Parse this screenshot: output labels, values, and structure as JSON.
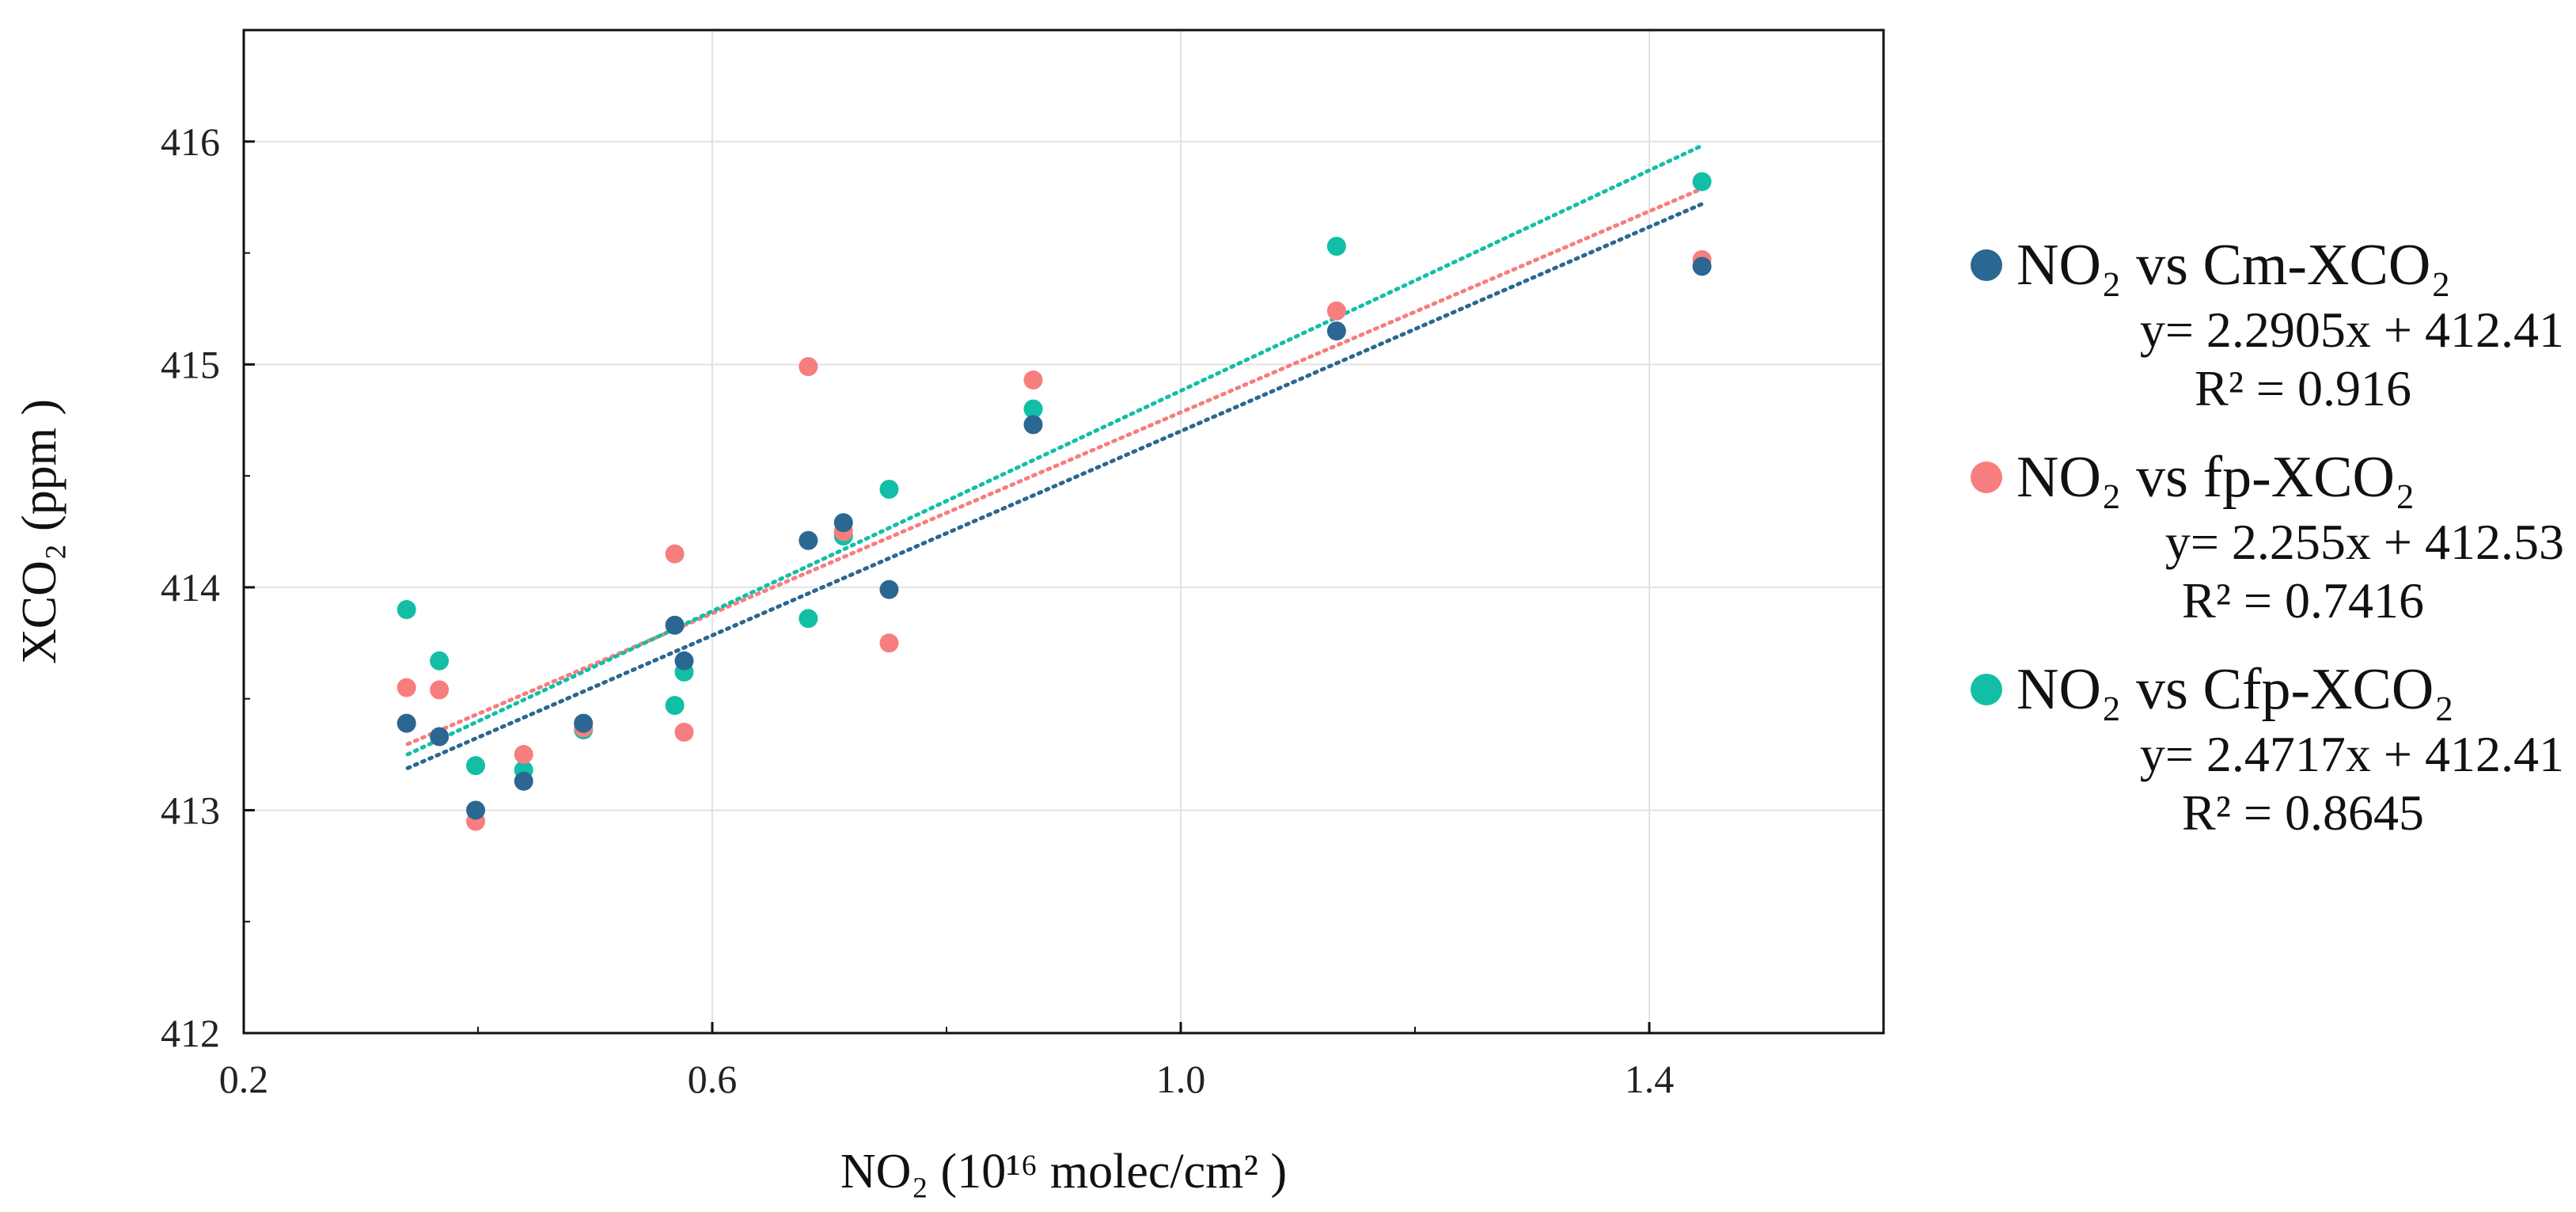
{
  "chart_data": {
    "type": "scatter",
    "xlabel": "NO₂ (10¹⁶ molec/cm² )",
    "ylabel": "XCO₂ (ppm )",
    "xlim": [
      0.2,
      1.6
    ],
    "ylim": [
      412,
      416.5
    ],
    "xticks": [
      0.2,
      0.6,
      1.0,
      1.4
    ],
    "xtick_labels": [
      "0.2",
      "0.6",
      "1.0",
      "1.4"
    ],
    "yticks": [
      412,
      413,
      414,
      415,
      416
    ],
    "ytick_labels": [
      "412",
      "413",
      "414",
      "415",
      "416"
    ],
    "grid": true,
    "legend_position": "right",
    "series": [
      {
        "name": "NO₂ vs Cm-XCO₂",
        "color": "#2b6791",
        "equation": "y= 2.2905x + 412.41",
        "r2": "R² = 0.916",
        "slope": 2.2905,
        "intercept": 412.41,
        "x": [
          0.339,
          0.367,
          0.398,
          0.439,
          0.49,
          0.568,
          0.576,
          0.682,
          0.712,
          0.751,
          0.874,
          1.133,
          1.445
        ],
        "y": [
          413.39,
          413.33,
          413.0,
          413.13,
          413.39,
          413.83,
          413.67,
          414.21,
          414.29,
          413.99,
          414.73,
          415.15,
          415.44
        ]
      },
      {
        "name": "NO₂ vs fp-XCO₂",
        "color": "#f77e7e",
        "equation": "y= 2.255x + 412.53",
        "r2": "R² = 0.7416",
        "slope": 2.255,
        "intercept": 412.53,
        "x": [
          0.339,
          0.367,
          0.398,
          0.439,
          0.49,
          0.568,
          0.576,
          0.682,
          0.712,
          0.751,
          0.874,
          1.133,
          1.445
        ],
        "y": [
          413.55,
          413.54,
          412.95,
          413.25,
          413.37,
          414.15,
          413.35,
          414.99,
          414.25,
          413.75,
          414.93,
          415.24,
          415.47
        ]
      },
      {
        "name": "NO₂ vs Cfp-XCO₂",
        "color": "#12bfa6",
        "equation": "y= 2.4717x + 412.41",
        "r2": "R² = 0.8645",
        "slope": 2.4717,
        "intercept": 412.41,
        "x": [
          0.339,
          0.367,
          0.398,
          0.439,
          0.49,
          0.568,
          0.576,
          0.682,
          0.712,
          0.751,
          0.874,
          1.133,
          1.445
        ],
        "y": [
          413.9,
          413.67,
          413.2,
          413.18,
          413.36,
          413.47,
          413.62,
          413.86,
          414.23,
          414.44,
          414.8,
          415.53,
          415.82
        ]
      }
    ],
    "trendline_range": [
      0.34,
      1.445
    ]
  }
}
